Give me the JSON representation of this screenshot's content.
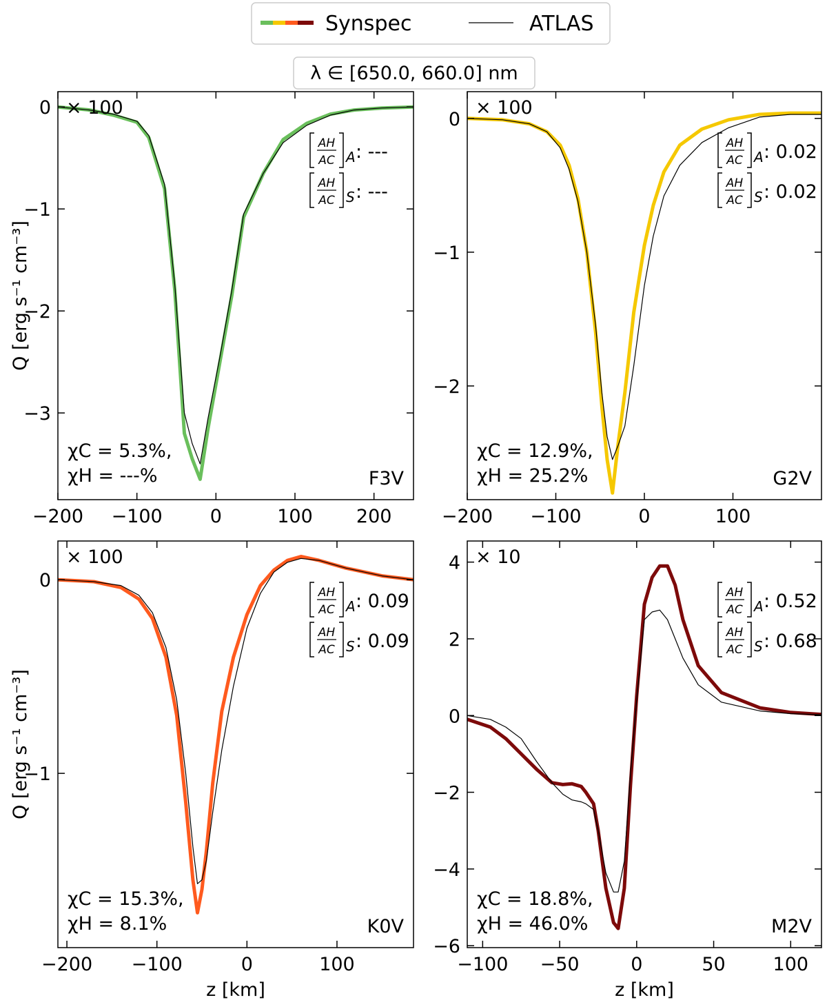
{
  "legend": {
    "entries": [
      {
        "label": "Synspec",
        "colors": [
          "#6abf5c",
          "#f5c800",
          "#ff5a1e",
          "#7d0a0a"
        ]
      },
      {
        "label": "ATLAS",
        "color": "#000000"
      }
    ],
    "wavelength_label": "λ ∈  [650.0, 660.0] nm"
  },
  "chart_data": [
    {
      "type": "line",
      "panel": "top-left",
      "star": "F3V",
      "scale_note": "× 100",
      "synspec_color": "#6abf5c",
      "xlim": [
        -200,
        250
      ],
      "ylim": [
        -3.85,
        0.15
      ],
      "xticks": [
        -200,
        -100,
        0,
        100,
        200
      ],
      "yticks": [
        0,
        -1,
        -2,
        -3
      ],
      "ytick_labels": [
        "0",
        "−1",
        "−2",
        "−3"
      ],
      "xtick_labels": [
        "−200",
        "−100",
        "0",
        "100",
        "200"
      ],
      "xlabel": "",
      "ylabel": "Q [erg s⁻¹ cm⁻³]",
      "ratio_A_label": "[A_H/A_C]_A:",
      "ratio_A": "---",
      "ratio_S_label": "[A_H/A_C]_S:",
      "ratio_S": "---",
      "chi_c": "χC = 5.3%,",
      "chi_h": "χH = ---%",
      "series": [
        {
          "name": "Synspec",
          "x": [
            -200,
            -160,
            -130,
            -100,
            -85,
            -65,
            -52,
            -40,
            -30,
            -20,
            -10,
            5,
            20,
            35,
            60,
            85,
            115,
            145,
            175,
            210,
            250
          ],
          "y": [
            0,
            -0.03,
            -0.08,
            -0.15,
            -0.3,
            -0.8,
            -1.8,
            -3.2,
            -3.45,
            -3.65,
            -3.15,
            -2.5,
            -1.85,
            -1.08,
            -0.65,
            -0.32,
            -0.16,
            -0.07,
            -0.03,
            -0.01,
            0
          ]
        },
        {
          "name": "ATLAS",
          "x": [
            -200,
            -160,
            -130,
            -100,
            -85,
            -65,
            -52,
            -40,
            -30,
            -20,
            -10,
            5,
            20,
            35,
            60,
            85,
            115,
            145,
            175,
            210,
            250
          ],
          "y": [
            0,
            -0.03,
            -0.07,
            -0.14,
            -0.28,
            -0.76,
            -1.75,
            -3.0,
            -3.3,
            -3.5,
            -3.05,
            -2.45,
            -1.8,
            -1.05,
            -0.65,
            -0.35,
            -0.18,
            -0.08,
            -0.03,
            -0.01,
            0
          ]
        }
      ]
    },
    {
      "type": "line",
      "panel": "top-right",
      "star": "G2V",
      "scale_note": "× 100",
      "synspec_color": "#f5c800",
      "xlim": [
        -200,
        200
      ],
      "ylim": [
        -2.85,
        0.2
      ],
      "xticks": [
        -200,
        -100,
        0,
        100
      ],
      "yticks": [
        0,
        -1,
        -2
      ],
      "ytick_labels": [
        "0",
        "−1",
        "−2"
      ],
      "xtick_labels": [
        "−200",
        "−100",
        "0",
        "100"
      ],
      "xlabel": "",
      "ylabel": "",
      "ratio_A_label": "[A_H/A_C]_A:",
      "ratio_A": "0.02",
      "ratio_S_label": "[A_H/A_C]_S:",
      "ratio_S": "0.02",
      "chi_c": "χC = 12.9%,",
      "chi_h": "χH = 25.2%",
      "series": [
        {
          "name": "Synspec",
          "x": [
            -200,
            -160,
            -130,
            -110,
            -95,
            -85,
            -75,
            -65,
            -55,
            -48,
            -42,
            -36,
            -30,
            -22,
            -12,
            0,
            10,
            22,
            40,
            65,
            95,
            130,
            165,
            200
          ],
          "y": [
            0,
            -0.01,
            -0.04,
            -0.1,
            -0.2,
            -0.35,
            -0.6,
            -1.0,
            -1.6,
            -2.15,
            -2.55,
            -2.8,
            -2.45,
            -2.05,
            -1.45,
            -0.95,
            -0.65,
            -0.4,
            -0.2,
            -0.08,
            -0.01,
            0.03,
            0.04,
            0.04
          ]
        },
        {
          "name": "ATLAS",
          "x": [
            -200,
            -160,
            -130,
            -110,
            -95,
            -85,
            -75,
            -65,
            -55,
            -48,
            -42,
            -36,
            -30,
            -22,
            -12,
            0,
            10,
            22,
            40,
            65,
            95,
            130,
            165,
            200
          ],
          "y": [
            0,
            -0.01,
            -0.04,
            -0.1,
            -0.22,
            -0.38,
            -0.62,
            -1.0,
            -1.55,
            -2.05,
            -2.38,
            -2.55,
            -2.45,
            -2.3,
            -1.85,
            -1.25,
            -0.88,
            -0.58,
            -0.35,
            -0.18,
            -0.07,
            0.01,
            0.03,
            0.03
          ]
        }
      ]
    },
    {
      "type": "line",
      "panel": "bottom-left",
      "star": "K0V",
      "scale_note": "× 100",
      "synspec_color": "#ff5a1e",
      "xlim": [
        -210,
        185
      ],
      "ylim": [
        -1.9,
        0.2
      ],
      "xticks": [
        -200,
        -100,
        0,
        100
      ],
      "yticks": [
        0,
        -1
      ],
      "ytick_labels": [
        "0",
        "−1"
      ],
      "xtick_labels": [
        "−200",
        "−100",
        "0",
        "100"
      ],
      "xlabel": "z [km]",
      "ylabel": "Q [erg s⁻¹ cm⁻³]",
      "ratio_A_label": "[A_H/A_C]_A:",
      "ratio_A": "0.09",
      "ratio_S_label": "[A_H/A_C]_S:",
      "ratio_S": "0.09",
      "chi_c": "χC = 15.3%,",
      "chi_h": "χH = 8.1%",
      "series": [
        {
          "name": "Synspec",
          "x": [
            -210,
            -170,
            -140,
            -120,
            -105,
            -90,
            -78,
            -68,
            -60,
            -55,
            -50,
            -45,
            -38,
            -28,
            -15,
            0,
            15,
            30,
            45,
            60,
            80,
            110,
            150,
            185
          ],
          "y": [
            0,
            -0.01,
            -0.04,
            -0.1,
            -0.2,
            -0.4,
            -0.7,
            -1.15,
            -1.55,
            -1.72,
            -1.6,
            -1.4,
            -1.05,
            -0.68,
            -0.4,
            -0.18,
            -0.03,
            0.05,
            0.1,
            0.12,
            0.1,
            0.06,
            0.02,
            0
          ]
        },
        {
          "name": "ATLAS",
          "x": [
            -210,
            -170,
            -140,
            -120,
            -105,
            -90,
            -78,
            -68,
            -60,
            -55,
            -50,
            -45,
            -38,
            -28,
            -15,
            0,
            15,
            30,
            45,
            60,
            80,
            110,
            150,
            185
          ],
          "y": [
            0,
            -0.01,
            -0.03,
            -0.08,
            -0.17,
            -0.35,
            -0.62,
            -1.0,
            -1.38,
            -1.57,
            -1.55,
            -1.45,
            -1.2,
            -0.88,
            -0.55,
            -0.25,
            -0.07,
            0.04,
            0.09,
            0.11,
            0.1,
            0.06,
            0.02,
            0
          ]
        }
      ]
    },
    {
      "type": "line",
      "panel": "bottom-right",
      "star": "M2V",
      "scale_note": "× 10",
      "synspec_color": "#7d0a0a",
      "xlim": [
        -110,
        120
      ],
      "ylim": [
        -6.05,
        4.55
      ],
      "xticks": [
        -100,
        -50,
        0,
        50,
        100
      ],
      "yticks": [
        4,
        2,
        0,
        -2,
        -4,
        -6
      ],
      "ytick_labels": [
        "4",
        "2",
        "0",
        "−2",
        "−4",
        "−6"
      ],
      "xtick_labels": [
        "−100",
        "−50",
        "0",
        "50",
        "100"
      ],
      "xlabel": "z [km]",
      "ylabel": "",
      "ratio_A_label": "[A_H/A_C]_A:",
      "ratio_A": "0.52",
      "ratio_S_label": "[A_H/A_C]_S:",
      "ratio_S": "0.68",
      "chi_c": "χC = 18.8%,",
      "chi_h": "χH = 46.0%",
      "series": [
        {
          "name": "Synspec",
          "x": [
            -110,
            -95,
            -85,
            -75,
            -65,
            -55,
            -48,
            -42,
            -36,
            -33,
            -28,
            -25,
            -20,
            -15,
            -12,
            -8,
            -4,
            0,
            5,
            10,
            15,
            20,
            25,
            30,
            40,
            55,
            80,
            100,
            120
          ],
          "y": [
            -0.1,
            -0.3,
            -0.6,
            -1.0,
            -1.4,
            -1.75,
            -1.8,
            -1.78,
            -1.85,
            -2.0,
            -2.3,
            -3.0,
            -4.5,
            -5.4,
            -5.55,
            -4.5,
            -1.8,
            0.5,
            2.9,
            3.6,
            3.9,
            3.9,
            3.4,
            2.5,
            1.3,
            0.6,
            0.2,
            0.08,
            0.03
          ]
        },
        {
          "name": "ATLAS",
          "x": [
            -110,
            -95,
            -85,
            -75,
            -65,
            -55,
            -48,
            -42,
            -36,
            -33,
            -28,
            -25,
            -20,
            -15,
            -12,
            -8,
            -4,
            0,
            5,
            10,
            15,
            20,
            25,
            30,
            40,
            55,
            80,
            100,
            120
          ],
          "y": [
            0,
            -0.1,
            -0.3,
            -0.6,
            -1.2,
            -1.75,
            -2.05,
            -2.2,
            -2.25,
            -2.3,
            -2.45,
            -3.0,
            -4.1,
            -4.6,
            -4.6,
            -3.8,
            -1.5,
            0.4,
            2.5,
            2.7,
            2.75,
            2.5,
            2.0,
            1.5,
            0.8,
            0.35,
            0.12,
            0.05,
            0.02
          ]
        }
      ]
    }
  ]
}
